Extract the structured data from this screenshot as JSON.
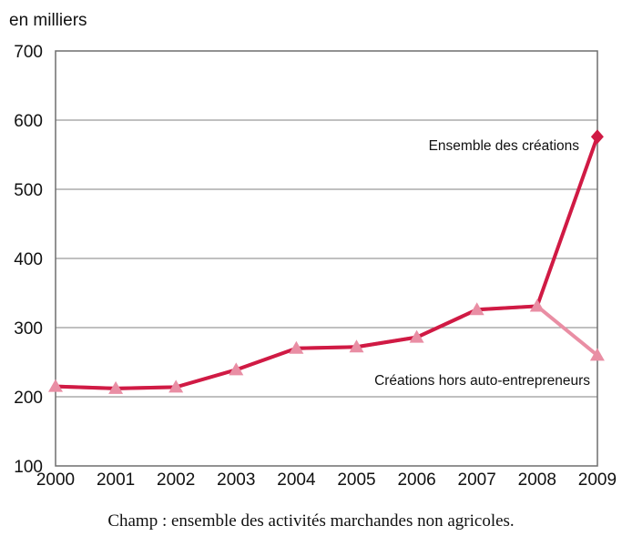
{
  "chart_data": {
    "type": "line",
    "title": "",
    "unit_label": "en milliers",
    "xlabel": "",
    "ylabel": "",
    "x": [
      "2000",
      "2001",
      "2002",
      "2003",
      "2004",
      "2005",
      "2006",
      "2007",
      "2008",
      "2009"
    ],
    "y_ticks": [
      "100",
      "200",
      "300",
      "400",
      "500",
      "600",
      "700"
    ],
    "ylim": [
      100,
      700
    ],
    "grid": true,
    "series": [
      {
        "name": "Ensemble des créations",
        "values": [
          215,
          212,
          214,
          239,
          270,
          272,
          286,
          326,
          331,
          576
        ],
        "color": "#d01a44",
        "marker": "diamond"
      },
      {
        "name": "Créations hors auto-entrepreneurs",
        "values": [
          215,
          212,
          214,
          239,
          270,
          272,
          286,
          326,
          331,
          260
        ],
        "color": "#e98ea4",
        "marker": "triangle"
      }
    ]
  },
  "footnote": "Champ : ensemble des activités marchandes non agricoles."
}
